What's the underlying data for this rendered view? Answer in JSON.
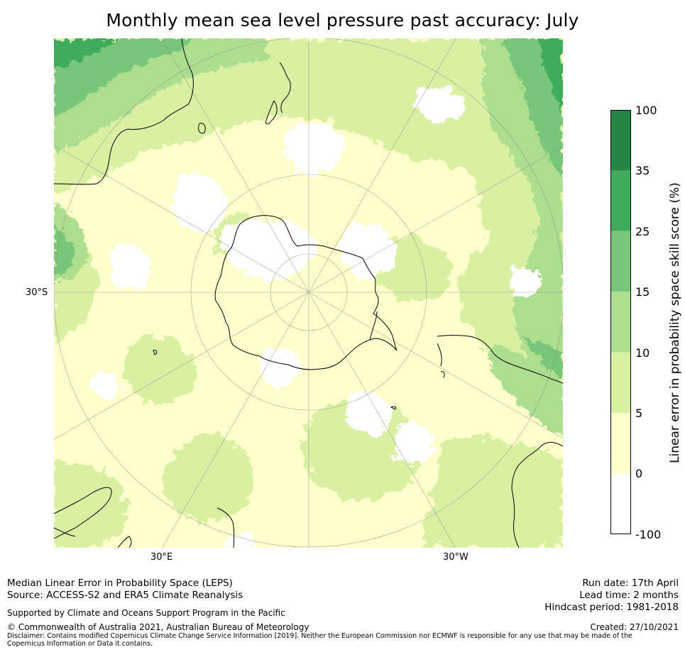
{
  "title": "Monthly mean sea level pressure past accuracy: July",
  "map": {
    "projection": "south-polar-stereographic",
    "lon_labels": [
      "30°E",
      "30°W"
    ],
    "lat_labels": [
      "30°S"
    ],
    "colors": {
      "c_neg": "#ffffff",
      "c0_5": "#ffffcc",
      "c5_10": "#d9f0a3",
      "c10_15": "#addd8e",
      "c15_25": "#78c679",
      "c25_35": "#41ab5d",
      "c35_100": "#238443"
    }
  },
  "colorbar": {
    "label": "Linear error in probability space skill score (%)",
    "ticks": [
      "100",
      "35",
      "25",
      "15",
      "10",
      "5",
      "0",
      "-100"
    ],
    "bands": [
      {
        "range": "35 to 100",
        "color": "#238443"
      },
      {
        "range": "25 to 35",
        "color": "#41ab5d"
      },
      {
        "range": "15 to 25",
        "color": "#78c679"
      },
      {
        "range": "10 to 15",
        "color": "#addd8e"
      },
      {
        "range": "5 to 10",
        "color": "#d9f0a3"
      },
      {
        "range": "0 to 5",
        "color": "#ffffcc"
      },
      {
        "range": "-100 to 0",
        "color": "#ffffff"
      }
    ]
  },
  "footer": {
    "line1": "Median Linear Error in Probability Space (LEPS)",
    "line2": "Source: ACCESS-S2 and ERA5 Climate Reanalysis",
    "support": "Supported by Climate and Oceans Support Program in the Pacific",
    "copyright": "© Commonwealth of Australia 2021, Australian Bureau of Meteorology",
    "disclaimer": "Disclaimer: Contains modified Copernicus Climate Change Service Information [2019]. Neither the European Commission nor ECMWF is responsible for any use that may be made of the Copernicus Information or Data it contains.",
    "run_date": "Run date: 17th April",
    "lead_time": "Lead time: 2 months",
    "hindcast": "Hindcast period: 1981-2018",
    "created": "Created: 27/10/2021"
  }
}
